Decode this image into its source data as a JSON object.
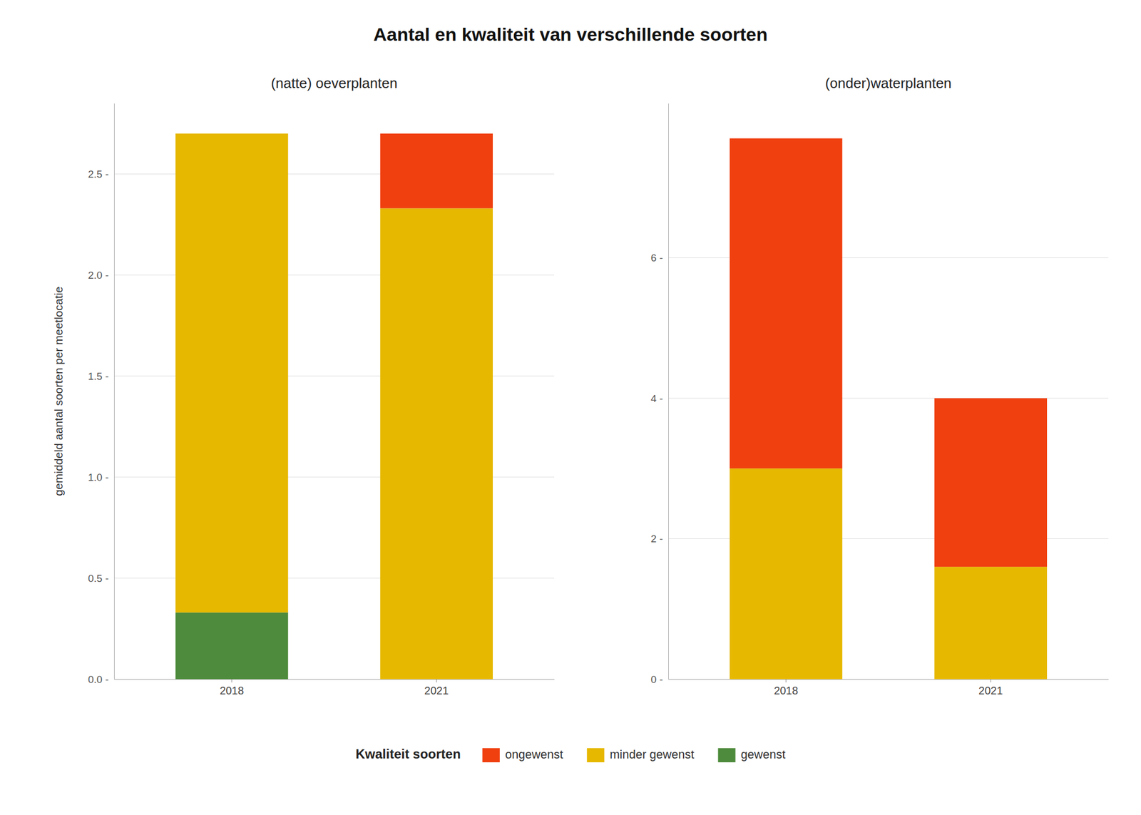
{
  "chart_data": [
    {
      "type": "bar",
      "stacked": true,
      "grid": true,
      "legend": "bottom",
      "title": "Aantal en kwaliteit van verschillende soorten",
      "subtitle": "(natte) oeverplanten",
      "ylabel": "gemiddeld aantal soorten per meetlocatie",
      "legend_title": "Kwaliteit soorten",
      "categories": [
        "2018",
        "2021"
      ],
      "series": [
        {
          "name": "gewenst",
          "color": "#4e8b3c",
          "values": [
            0.33,
            0.0
          ]
        },
        {
          "name": "minder gewenst",
          "color": "#e6b800",
          "values": [
            2.37,
            2.33
          ]
        },
        {
          "name": "ongewenst",
          "color": "#f04010",
          "values": [
            0.0,
            0.37
          ]
        }
      ],
      "ylim": [
        0,
        2.85
      ],
      "yticks": [
        {
          "value": 0.0,
          "label": "0.0 -"
        },
        {
          "value": 0.5,
          "label": "0.5 -"
        },
        {
          "value": 1.0,
          "label": "1.0 -"
        },
        {
          "value": 1.5,
          "label": "1.5 -"
        },
        {
          "value": 2.0,
          "label": "2.0 -"
        },
        {
          "value": 2.5,
          "label": "2.5 -"
        }
      ]
    },
    {
      "type": "bar",
      "stacked": true,
      "grid": true,
      "subtitle": "(onder)waterplanten",
      "categories": [
        "2018",
        "2021"
      ],
      "series": [
        {
          "color": "#4e8b3c",
          "values": [
            0.0,
            0.0
          ]
        },
        {
          "color": "#e6b800",
          "values": [
            3.0,
            1.6
          ]
        },
        {
          "color": "#f04010",
          "values": [
            4.7,
            2.4
          ]
        }
      ],
      "ylim": [
        0,
        8.2
      ],
      "yticks": [
        {
          "value": 0,
          "label": "0 -"
        },
        {
          "value": 2,
          "label": "2 -"
        },
        {
          "value": 4,
          "label": "4 -"
        },
        {
          "value": 6,
          "label": "6 -"
        }
      ]
    }
  ]
}
